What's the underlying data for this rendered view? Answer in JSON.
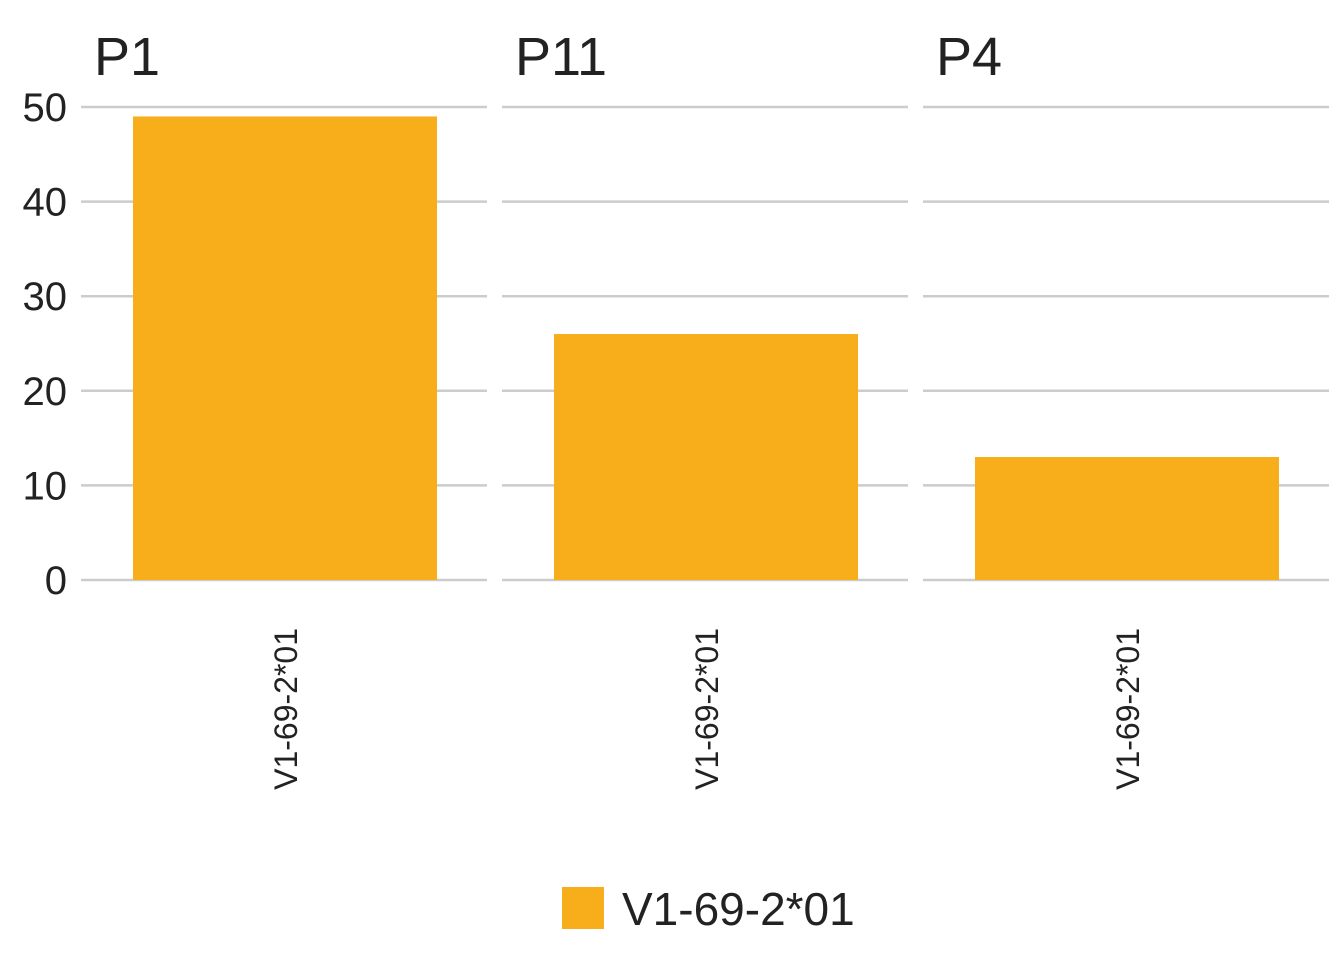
{
  "chart_data": {
    "type": "bar",
    "title": "",
    "xlabel": "",
    "ylabel": "",
    "ylim": [
      0,
      50
    ],
    "yticks": [
      0,
      10,
      20,
      30,
      40,
      50
    ],
    "grid": true,
    "legend_position": "bottom",
    "color": "#F8AD1B",
    "legend": [
      "V1-69-2*01"
    ],
    "facets": [
      {
        "title": "P1",
        "categories": [
          "V1-69-2*01"
        ],
        "values": [
          49
        ]
      },
      {
        "title": "P11",
        "categories": [
          "V1-69-2*01"
        ],
        "values": [
          26
        ]
      },
      {
        "title": "P4",
        "categories": [
          "V1-69-2*01"
        ],
        "values": [
          13
        ]
      }
    ]
  }
}
